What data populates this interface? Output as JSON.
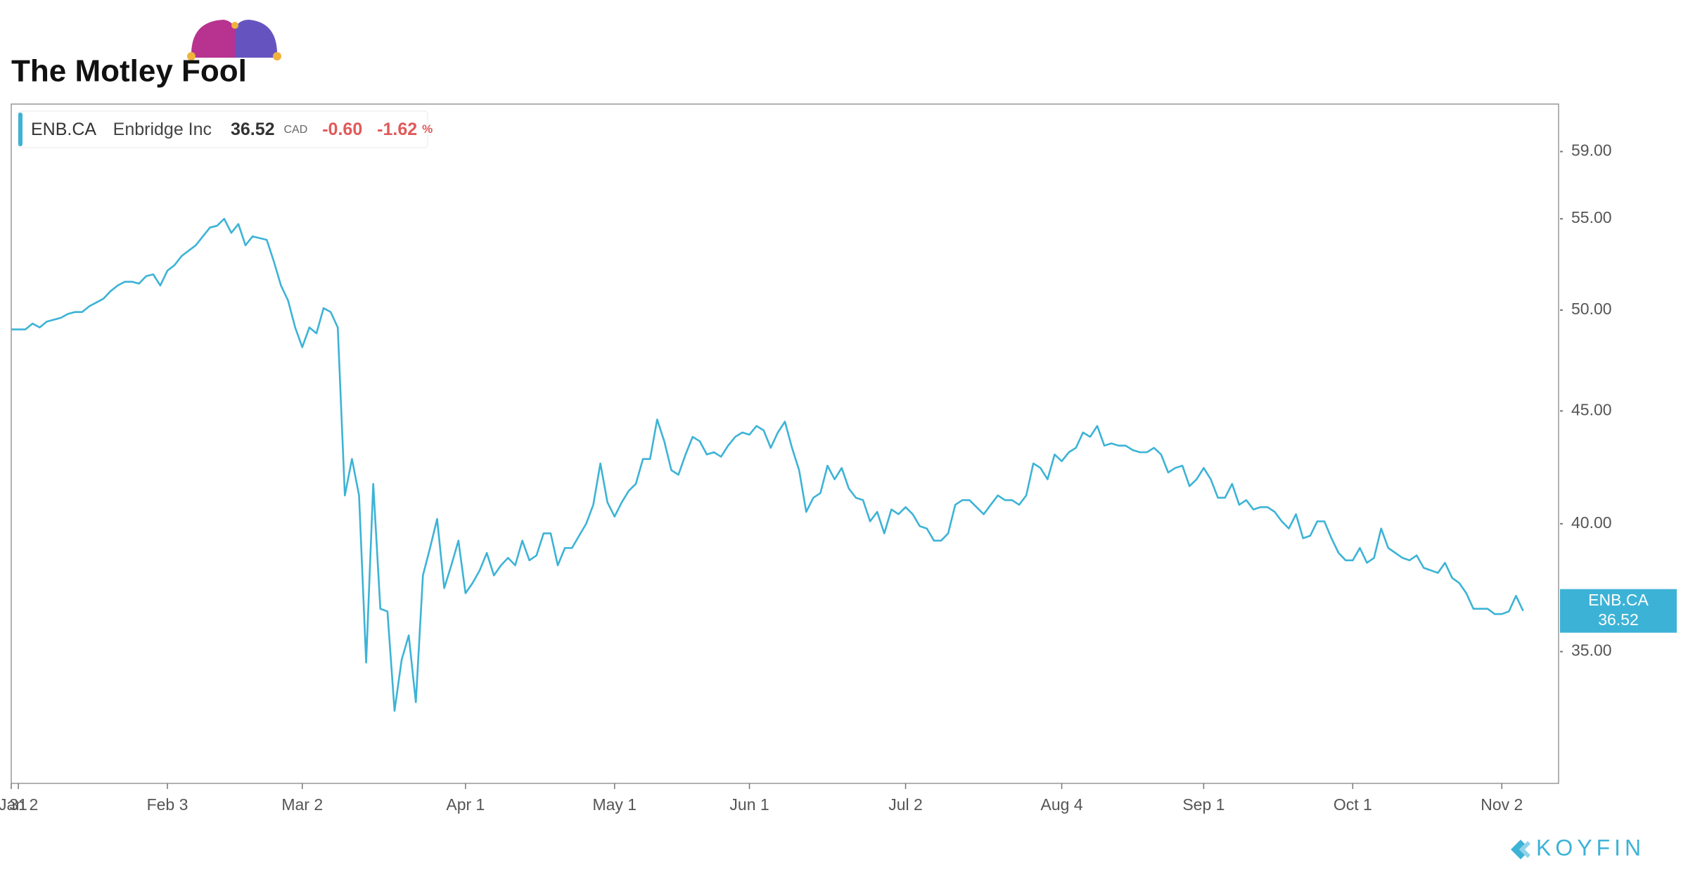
{
  "brand": "The Motley Fool",
  "source": "KOYFIN",
  "chart_data": {
    "type": "line",
    "legend": {
      "ticker": "ENB.CA",
      "name": "Enbridge Inc",
      "currency": "CAD",
      "change": "-0.60",
      "change_pct": "-1.62",
      "pct_unit": "%"
    },
    "log_scale": true,
    "ylim": [
      30.5,
      62
    ],
    "yticks": [
      {
        "value": 35,
        "label": "35.00"
      },
      {
        "value": 40,
        "label": "40.00"
      },
      {
        "value": 45,
        "label": "45.00"
      },
      {
        "value": 50,
        "label": "50.00"
      },
      {
        "value": 55,
        "label": "55.00"
      },
      {
        "value": 59,
        "label": "59.00"
      }
    ],
    "xlim": [
      0,
      218
    ],
    "xticks": [
      {
        "value": 0,
        "label": "31"
      },
      {
        "value": 1,
        "label": "Jan 2"
      },
      {
        "value": 22,
        "label": "Feb 3"
      },
      {
        "value": 41,
        "label": "Mar 2"
      },
      {
        "value": 64,
        "label": "Apr 1"
      },
      {
        "value": 85,
        "label": "May 1"
      },
      {
        "value": 104,
        "label": "Jun 1"
      },
      {
        "value": 126,
        "label": "Jul 2"
      },
      {
        "value": 148,
        "label": "Aug 4"
      },
      {
        "value": 168,
        "label": "Sep 1"
      },
      {
        "value": 189,
        "label": "Oct 1"
      },
      {
        "value": 210,
        "label": "Nov 2"
      }
    ],
    "series": [
      {
        "name": "ENB.CA",
        "color": "#3cb3d6",
        "values": [
          49.0,
          49.0,
          49.0,
          49.3,
          49.1,
          49.4,
          49.5,
          49.6,
          49.8,
          49.9,
          49.9,
          50.2,
          50.4,
          50.6,
          51.0,
          51.3,
          51.5,
          51.5,
          51.4,
          51.8,
          51.9,
          51.3,
          52.1,
          52.4,
          52.9,
          53.2,
          53.5,
          54.0,
          54.5,
          54.6,
          55.0,
          54.2,
          54.7,
          53.5,
          54.0,
          53.9,
          53.8,
          52.6,
          51.3,
          50.5,
          49.1,
          48.1,
          49.1,
          48.8,
          50.1,
          49.9,
          49.1,
          41.2,
          42.8,
          41.2,
          34.6,
          41.7,
          36.6,
          36.5,
          32.9,
          34.7,
          35.6,
          33.2,
          37.9,
          39.0,
          40.2,
          37.4,
          38.3,
          39.3,
          37.2,
          37.6,
          38.1,
          38.8,
          37.9,
          38.3,
          38.6,
          38.3,
          39.3,
          38.5,
          38.7,
          39.6,
          39.6,
          38.3,
          39.0,
          39.0,
          39.5,
          40.0,
          40.8,
          42.6,
          40.9,
          40.3,
          40.9,
          41.4,
          41.7,
          42.8,
          42.8,
          44.6,
          43.6,
          42.3,
          42.1,
          43.0,
          43.8,
          43.6,
          43.0,
          43.1,
          42.9,
          43.4,
          43.8,
          44.0,
          43.9,
          44.3,
          44.1,
          43.3,
          44.0,
          44.5,
          43.3,
          42.3,
          40.5,
          41.1,
          41.3,
          42.5,
          41.9,
          42.4,
          41.5,
          41.1,
          41.0,
          40.1,
          40.5,
          39.6,
          40.6,
          40.4,
          40.7,
          40.4,
          39.9,
          39.8,
          39.3,
          39.3,
          39.6,
          40.8,
          41.0,
          41.0,
          40.7,
          40.4,
          40.8,
          41.2,
          41.0,
          41.0,
          40.8,
          41.2,
          42.6,
          42.4,
          41.9,
          43.0,
          42.7,
          43.1,
          43.3,
          44.0,
          43.8,
          44.3,
          43.4,
          43.5,
          43.4,
          43.4,
          43.2,
          43.1,
          43.1,
          43.3,
          43.0,
          42.2,
          42.4,
          42.5,
          41.6,
          41.9,
          42.4,
          41.9,
          41.1,
          41.1,
          41.7,
          40.8,
          41.0,
          40.6,
          40.7,
          40.7,
          40.5,
          40.1,
          39.8,
          40.4,
          39.4,
          39.5,
          40.1,
          40.1,
          39.4,
          38.8,
          38.5,
          38.5,
          39.0,
          38.4,
          38.6,
          39.8,
          39.0,
          38.8,
          38.6,
          38.5,
          38.7,
          38.2,
          38.1,
          38.0,
          38.4,
          37.8,
          37.6,
          37.2,
          36.6,
          36.6,
          36.6,
          36.4,
          36.4,
          36.5,
          37.1,
          36.52
        ]
      }
    ]
  }
}
